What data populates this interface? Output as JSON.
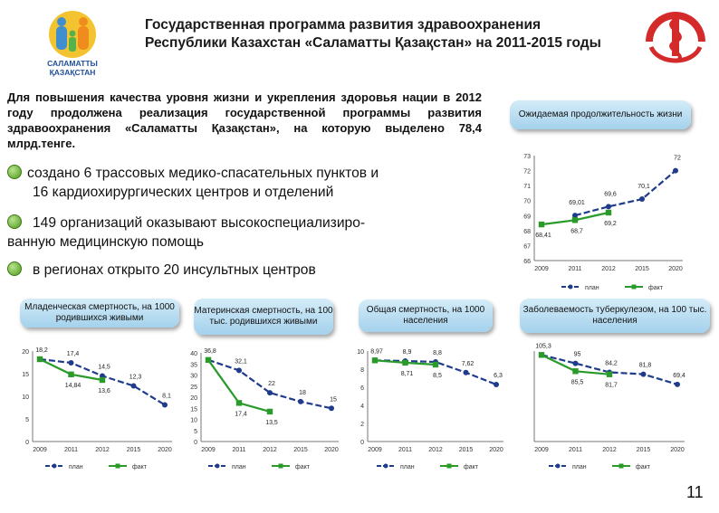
{
  "logo_text": "САЛАМАТТЫ ҚАЗАҚСТАН",
  "title": "Государственная программа развития здравоохранения Республики Казахстан «Саламатты Қазақстан» на 2011-2015 годы",
  "intro": "Для повышения качества уровня жизни и укрепления здоровья нации в 2012 году продолжена реализация государственной программы развития здравоохранения «Саламатты Қазақстан», на которую выделено 78,4 млрд.тенге.",
  "bullets": [
    {
      "line1": "создано 6 трассовых медико-спасательных пунктов и",
      "line2": "16 кардиохирургических центров и отделений"
    },
    {
      "line1": "149 организаций оказывают высокоспециализиро-",
      "line2": "ванную медицинскую помощь"
    },
    {
      "line1": "в регионах открыто 20 инсультных центров"
    }
  ],
  "page_number": "11",
  "colors": {
    "plan": "#1f3c8c",
    "fact": "#2a9a2a"
  },
  "chart_data": [
    {
      "id": "life",
      "type": "line",
      "title": "Ожидаемая продолжительность жизни",
      "categories": [
        "2009",
        "2011",
        "2012",
        "2015",
        "2020"
      ],
      "ylim": [
        66,
        73
      ],
      "yticks": [
        "66",
        "67",
        "68",
        "69",
        "70",
        "71",
        "72",
        "73"
      ],
      "series": [
        {
          "name": "план",
          "values": [
            null,
            69.01,
            69.6,
            70.1,
            72
          ],
          "labels": [
            "",
            "69,01",
            "69,6",
            "70,1",
            "72"
          ]
        },
        {
          "name": "факт",
          "values": [
            68.41,
            68.7,
            69.2,
            null,
            null
          ],
          "labels": [
            "68,41",
            "68,7",
            "69,2",
            "",
            ""
          ]
        }
      ]
    },
    {
      "id": "infant",
      "type": "line",
      "title": "Младенческая смертность, на 1000 родившихся живыми",
      "categories": [
        "2009",
        "2011",
        "2012",
        "2015",
        "2020"
      ],
      "ylim": [
        0,
        20
      ],
      "yticks": [
        "0",
        "5",
        "10",
        "15",
        "20"
      ],
      "series": [
        {
          "name": "план",
          "values": [
            18.2,
            17.4,
            14.5,
            12.3,
            8.1
          ],
          "labels": [
            "18,2",
            "17,4",
            "14,5",
            "12,3",
            "8,1"
          ]
        },
        {
          "name": "факт",
          "values": [
            18.2,
            14.84,
            13.6,
            null,
            null
          ],
          "labels": [
            "",
            "14,84",
            "13,6",
            "",
            ""
          ]
        }
      ]
    },
    {
      "id": "maternal",
      "type": "line",
      "title": "Материнская смертность, на 100 тыс. родившихся живыми",
      "categories": [
        "2009",
        "2011",
        "2012",
        "2015",
        "2020"
      ],
      "ylim": [
        0,
        40
      ],
      "yticks": [
        "0",
        "5",
        "10",
        "15",
        "20",
        "25",
        "30",
        "35",
        "40"
      ],
      "series": [
        {
          "name": "план",
          "values": [
            36.8,
            32.1,
            22,
            18,
            15
          ],
          "labels": [
            "36,8",
            "32,1",
            "22",
            "18",
            "15"
          ]
        },
        {
          "name": "факт",
          "values": [
            36.8,
            17.4,
            13.5,
            null,
            null
          ],
          "labels": [
            "",
            "17,4",
            "13,5",
            "",
            ""
          ]
        }
      ]
    },
    {
      "id": "mortality",
      "type": "line",
      "title": "Общая смертность, на 1000 населения",
      "categories": [
        "2009",
        "2011",
        "2012",
        "2015",
        "2020"
      ],
      "ylim": [
        0,
        10
      ],
      "yticks": [
        "0",
        "2",
        "4",
        "6",
        "8",
        "10"
      ],
      "series": [
        {
          "name": "план",
          "values": [
            8.97,
            8.9,
            8.8,
            7.62,
            6.3
          ],
          "labels": [
            "8,97",
            "8,9",
            "8,8",
            "7,62",
            "6,3"
          ]
        },
        {
          "name": "факт",
          "values": [
            8.97,
            8.71,
            8.5,
            null,
            null
          ],
          "labels": [
            "",
            "8,71",
            "8,5",
            "",
            ""
          ]
        }
      ]
    },
    {
      "id": "tb",
      "type": "line",
      "title": "Заболеваемость туберкулезом, на 100 тыс. населения",
      "categories": [
        "2009",
        "2011",
        "2012",
        "2015",
        "2020"
      ],
      "ylim": [
        0,
        110
      ],
      "yticks": [],
      "series": [
        {
          "name": "план",
          "values": [
            105.3,
            95,
            84.2,
            81.8,
            69.4
          ],
          "labels": [
            "105,3",
            "95",
            "84,2",
            "81,8",
            "69,4"
          ]
        },
        {
          "name": "факт",
          "values": [
            105.3,
            85.5,
            81.7,
            null,
            null
          ],
          "labels": [
            "",
            "85,5",
            "81,7",
            "",
            ""
          ]
        }
      ]
    }
  ]
}
